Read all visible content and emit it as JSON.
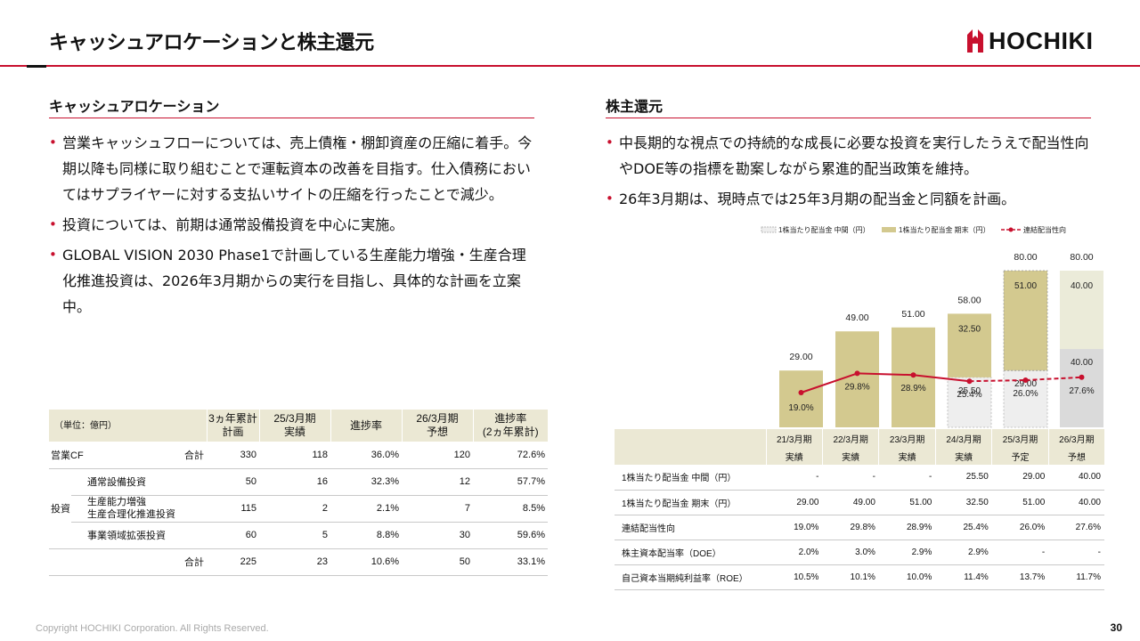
{
  "header": {
    "title": "キャッシュアロケーションと株主還元",
    "logo_text": "HOCHIKI",
    "brand_color": "#c8102e"
  },
  "left": {
    "title": "キャッシュアロケーション",
    "bullets": [
      "営業キャッシュフローについては、売上債権・棚卸資産の圧縮に着手。今期以降も同様に取り組むことで運転資本の改善を目指す。仕入債務においてはサプライヤーに対する支払いサイトの圧縮を行ったことで減少。",
      "投資については、前期は通常設備投資を中心に実施。",
      "GLOBAL VISION 2030 Phase1で計画している生産能力増強・生産合理化推進投資は、2026年3月期からの実行を目指し、具体的な計画を立案中。"
    ],
    "table": {
      "unit_label": "（単位：億円）",
      "headers": [
        "3ヵ年累計\n計画",
        "25/3月期\n実績",
        "進捗率",
        "26/3月期\n予想",
        "進捗率\n(2ヵ年累計)"
      ],
      "cf_label": "営業CF",
      "invest_label": "投資",
      "total_label": "合計",
      "rows": {
        "cf_total": [
          "330",
          "118",
          "36.0%",
          "120",
          "72.6%"
        ],
        "regular": {
          "label": "通常設備投資",
          "values": [
            "50",
            "16",
            "32.3%",
            "12",
            "57.7%"
          ]
        },
        "capacity": {
          "label1": "生産能力増強",
          "label2": "生産合理化推進投資",
          "values": [
            "115",
            "2",
            "2.1%",
            "7",
            "8.5%"
          ]
        },
        "expansion": {
          "label": "事業領域拡張投資",
          "values": [
            "60",
            "5",
            "8.8%",
            "30",
            "59.6%"
          ]
        },
        "invest_total": [
          "225",
          "23",
          "10.6%",
          "50",
          "33.1%"
        ]
      }
    }
  },
  "right": {
    "title": "株主還元",
    "bullets": [
      "中長期的な視点での持続的な成長に必要な投資を実行したうえで配当性向やDOE等の指標を勘案しながら累進的配当政策を維持。",
      "26年3月期は、現時点では25年3月期の配当金と同額を計画。"
    ],
    "table": {
      "periods": [
        {
          "period": "21/3月期",
          "status": "実績"
        },
        {
          "period": "22/3月期",
          "status": "実績"
        },
        {
          "period": "23/3月期",
          "status": "実績"
        },
        {
          "period": "24/3月期",
          "status": "実績"
        },
        {
          "period": "25/3月期",
          "status": "予定"
        },
        {
          "period": "26/3月期",
          "status": "予想"
        }
      ],
      "rows": [
        {
          "label": "1株当たり配当金 中間（円）",
          "values": [
            "-",
            "-",
            "-",
            "25.50",
            "29.00",
            "40.00"
          ]
        },
        {
          "label": "1株当たり配当金 期末（円）",
          "values": [
            "29.00",
            "49.00",
            "51.00",
            "32.50",
            "51.00",
            "40.00"
          ]
        },
        {
          "label": "連結配当性向",
          "values": [
            "19.0%",
            "29.8%",
            "28.9%",
            "25.4%",
            "26.0%",
            "27.6%"
          ]
        },
        {
          "label": "株主資本配当率（DOE）",
          "values": [
            "2.0%",
            "3.0%",
            "2.9%",
            "2.9%",
            "-",
            "-"
          ]
        },
        {
          "label": "自己資本当期純利益率（ROE）",
          "values": [
            "10.5%",
            "10.1%",
            "10.0%",
            "11.4%",
            "13.7%",
            "11.7%"
          ]
        }
      ]
    }
  },
  "chart_data": {
    "type": "bar",
    "stacked": true,
    "categories": [
      "21/3月期",
      "22/3月期",
      "23/3月期",
      "24/3月期",
      "25/3月期",
      "26/3月期"
    ],
    "series": [
      {
        "name": "1株当たり配当金 中間（円）",
        "values": [
          0,
          0,
          0,
          25.5,
          29.0,
          40.0
        ]
      },
      {
        "name": "1株当たり配当金 期末（円）",
        "values": [
          29.0,
          49.0,
          51.0,
          32.5,
          51.0,
          40.0
        ]
      }
    ],
    "totals": [
      29.0,
      49.0,
      51.0,
      58.0,
      80.0,
      80.0
    ],
    "total_labels": [
      "29.00",
      "49.00",
      "51.00",
      "58.00",
      "80.00",
      "80.00"
    ],
    "interim_labels": [
      "",
      "",
      "",
      "25.50",
      "29.00",
      "40.00"
    ],
    "final_labels": [
      "",
      "",
      "",
      "32.50",
      "51.00",
      "40.00"
    ],
    "line": {
      "name": "連結配当性向",
      "values": [
        19.0,
        29.8,
        28.9,
        25.4,
        26.0,
        27.6
      ],
      "labels": [
        "19.0%",
        "29.8%",
        "28.9%",
        "25.4%",
        "26.0%",
        "27.6%"
      ]
    },
    "legend": [
      "1株当たり配当金 中間（円）",
      "1株当たり配当金 期末（円）",
      "連結配当性向"
    ],
    "colors": {
      "final": "#d3c98f",
      "interim": "#eeeeee",
      "forecast_final": "#ebebd9",
      "forecast_interim": "#dadada",
      "line": "#c8102e"
    }
  },
  "footer": {
    "copyright": "Copyright HOCHIKI Corporation. All Rights Reserved.",
    "page_number": "30"
  }
}
